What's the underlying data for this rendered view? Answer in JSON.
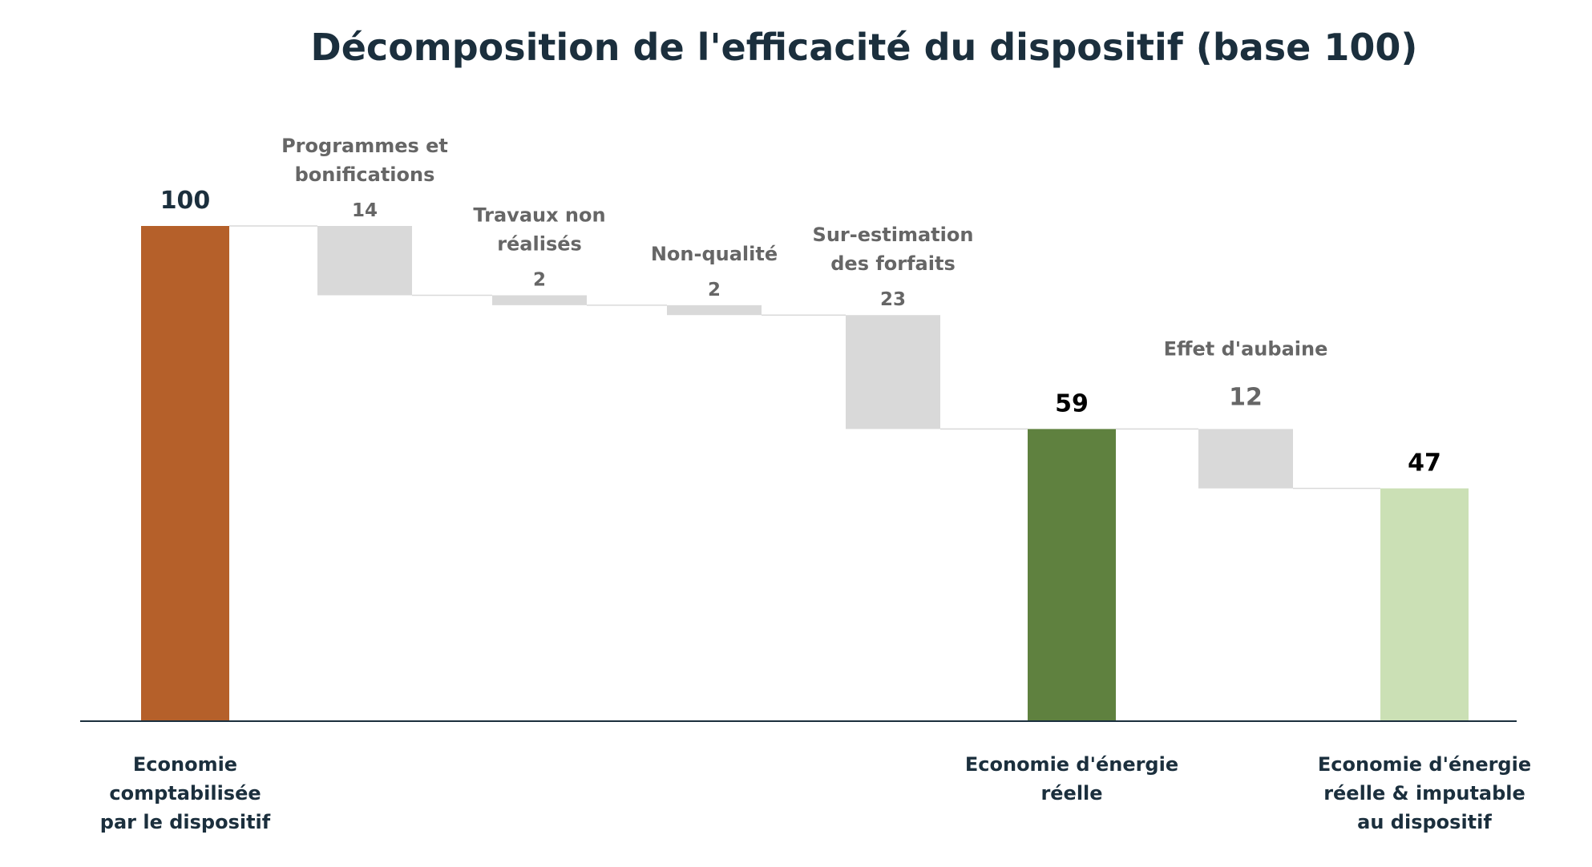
{
  "chart_data": {
    "type": "waterfall",
    "title": "Décomposition de l'efficacité du dispositif (base 100)",
    "xlabel": "",
    "ylabel": "",
    "ylim": [
      0,
      100
    ],
    "grid": false,
    "legend": "none",
    "colors": {
      "title": "#1b2f3d",
      "axis": "#1b2f3d",
      "decrease": "#d9d9d9",
      "connector": "#d9d9d9",
      "decrease_label": "#666666",
      "total_label": "#000000",
      "category_label": "#1b2f3d"
    },
    "steps": [
      {
        "key": "comptabilisee",
        "kind": "total",
        "value": 100,
        "value_label": "100",
        "label_lines": [
          "Economie",
          "comptabilisée",
          "par le dispositif"
        ],
        "color": "#b5602a",
        "value_color": "#1b2f3d"
      },
      {
        "key": "programmes",
        "kind": "decrease",
        "value": 14,
        "value_label": "14",
        "label_lines": [
          "Programmes et",
          "bonifications"
        ]
      },
      {
        "key": "travaux",
        "kind": "decrease",
        "value": 2,
        "value_label": "2",
        "label_lines": [
          "Travaux non",
          "réalisés"
        ]
      },
      {
        "key": "non-qualite",
        "kind": "decrease",
        "value": 2,
        "value_label": "2",
        "label_lines": [
          "Non-qualité"
        ]
      },
      {
        "key": "sur-estimation",
        "kind": "decrease",
        "value": 23,
        "value_label": "23",
        "label_lines": [
          "Sur-estimation",
          "des forfaits"
        ]
      },
      {
        "key": "reelle",
        "kind": "total",
        "value": 59,
        "value_label": "59",
        "label_lines": [
          "Economie d'énergie",
          "réelle"
        ],
        "color": "#5f813f",
        "value_color": "#000000"
      },
      {
        "key": "aubaine",
        "kind": "decrease",
        "value": 12,
        "value_label": "12",
        "label_lines": [
          "Effet d'aubaine"
        ]
      },
      {
        "key": "imputable",
        "kind": "total",
        "value": 47,
        "value_label": "47",
        "label_lines": [
          "Economie d'énergie",
          "réelle & imputable",
          "au dispositif"
        ],
        "color": "#cbe0b5",
        "value_color": "#000000"
      }
    ]
  }
}
